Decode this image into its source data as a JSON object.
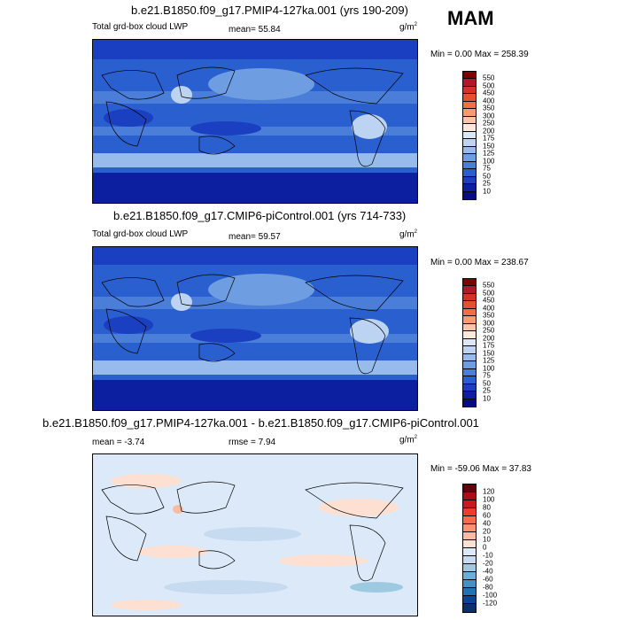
{
  "season": "MAM",
  "panels": [
    {
      "title": "b.e21.B1850.f09_g17.PMIP4-127ka.001 (yrs 190-209)",
      "left_label": "Total grd-box cloud LWP",
      "mean_label": "mean=  55.84",
      "units": "g/m",
      "units_exp": "2",
      "minmax": "Min =   0.00 Max = 258.39",
      "levels": [
        "550",
        "500",
        "450",
        "400",
        "350",
        "300",
        "250",
        "200",
        "175",
        "150",
        "125",
        "100",
        "75",
        "50",
        "25",
        "10"
      ],
      "colors": [
        "#7f0000",
        "#b2182b",
        "#d73027",
        "#e7502f",
        "#f46d43",
        "#f99a70",
        "#fcc5a8",
        "#fde8da",
        "#dbe7f7",
        "#bcd3f1",
        "#97bbea",
        "#6e9de2",
        "#4a7ed8",
        "#2a5fd0",
        "#1a3fc0",
        "#0c1fa0",
        "#070c80"
      ]
    },
    {
      "title": "b.e21.B1850.f09_g17.CMIP6-piControl.001 (yrs 714-733)",
      "left_label": "Total grd-box cloud LWP",
      "mean_label": "mean=  59.57",
      "units": "g/m",
      "units_exp": "2",
      "minmax": "Min =   0.00 Max = 238.67",
      "levels": [
        "550",
        "500",
        "450",
        "400",
        "350",
        "300",
        "250",
        "200",
        "175",
        "150",
        "125",
        "100",
        "75",
        "50",
        "25",
        "10"
      ],
      "colors": [
        "#7f0000",
        "#b2182b",
        "#d73027",
        "#e7502f",
        "#f46d43",
        "#f99a70",
        "#fcc5a8",
        "#fde8da",
        "#dbe7f7",
        "#bcd3f1",
        "#97bbea",
        "#6e9de2",
        "#4a7ed8",
        "#2a5fd0",
        "#1a3fc0",
        "#0c1fa0",
        "#070c80"
      ]
    },
    {
      "title": "b.e21.B1850.f09_g17.PMIP4-127ka.001 - b.e21.B1850.f09_g17.CMIP6-piControl.001",
      "left_label": "mean =  -3.74",
      "mean_label": "rmse =   7.94",
      "units": "g/m",
      "units_exp": "2",
      "minmax": "Min = -59.06 Max =  37.83",
      "levels": [
        "120",
        "100",
        "80",
        "60",
        "40",
        "20",
        "10",
        "0",
        "-10",
        "-20",
        "-40",
        "-60",
        "-80",
        "-100",
        "-120"
      ],
      "colors": [
        "#67000d",
        "#a50f15",
        "#cb181d",
        "#ef3b2c",
        "#fb6a4a",
        "#fc9272",
        "#fcbba1",
        "#fee0d2",
        "#dbe9f8",
        "#c6dbef",
        "#9ecae1",
        "#6baed6",
        "#4292c6",
        "#2171b5",
        "#084594",
        "#08306b"
      ]
    }
  ]
}
